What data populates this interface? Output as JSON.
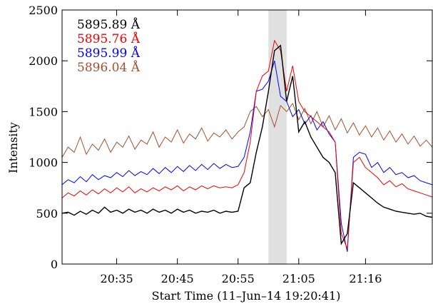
{
  "chart_data": {
    "type": "line",
    "title": "",
    "xlabel": "Start Time (11–Jun–14 19:20:41)",
    "ylabel": "Intensity",
    "x_unit": "minutes",
    "xlim": [
      "20:26",
      "21:27"
    ],
    "ylim": [
      0,
      2500
    ],
    "y_ticks": [
      0,
      500,
      1000,
      1500,
      2000,
      2500
    ],
    "x_ticks": [
      {
        "t": "20:35",
        "label": "20:35"
      },
      {
        "t": "20:45",
        "label": "20:45"
      },
      {
        "t": "20:55",
        "label": "20:55"
      },
      {
        "t": "21:05",
        "label": "21:05"
      },
      {
        "t": "21:16",
        "label": "21:16"
      }
    ],
    "shaded_interval": [
      "21:00",
      "21:03"
    ],
    "grid": false,
    "legend_position": "top-left",
    "series": [
      {
        "name": "5896.04 Å",
        "color": "#a0522d",
        "points": [
          [
            "20:26",
            1050
          ],
          [
            "20:27",
            1150
          ],
          [
            "20:28",
            1100
          ],
          [
            "20:29",
            1250
          ],
          [
            "20:30",
            1080
          ],
          [
            "20:31",
            1180
          ],
          [
            "20:32",
            1120
          ],
          [
            "20:33",
            1230
          ],
          [
            "20:34",
            1100
          ],
          [
            "20:35",
            1200
          ],
          [
            "20:36",
            1150
          ],
          [
            "20:37",
            1260
          ],
          [
            "20:38",
            1130
          ],
          [
            "20:39",
            1220
          ],
          [
            "20:40",
            1180
          ],
          [
            "20:41",
            1300
          ],
          [
            "20:42",
            1150
          ],
          [
            "20:43",
            1250
          ],
          [
            "20:44",
            1200
          ],
          [
            "20:45",
            1320
          ],
          [
            "20:46",
            1190
          ],
          [
            "20:47",
            1280
          ],
          [
            "20:48",
            1230
          ],
          [
            "20:49",
            1340
          ],
          [
            "20:50",
            1210
          ],
          [
            "20:51",
            1290
          ],
          [
            "20:52",
            1250
          ],
          [
            "20:53",
            1320
          ],
          [
            "20:54",
            1230
          ],
          [
            "20:55",
            1300
          ],
          [
            "20:56",
            1350
          ],
          [
            "20:57",
            1500
          ],
          [
            "20:58",
            1550
          ],
          [
            "20:59",
            1450
          ],
          [
            "21:00",
            1520
          ],
          [
            "21:01",
            1350
          ],
          [
            "21:02",
            1560
          ],
          [
            "21:03",
            1500
          ],
          [
            "21:04",
            1580
          ],
          [
            "21:05",
            1420
          ],
          [
            "21:06",
            1530
          ],
          [
            "21:07",
            1380
          ],
          [
            "21:08",
            1500
          ],
          [
            "21:09",
            1350
          ],
          [
            "21:10",
            1460
          ],
          [
            "21:11",
            1320
          ],
          [
            "21:12",
            1430
          ],
          [
            "21:13",
            1290
          ],
          [
            "21:14",
            1390
          ],
          [
            "21:15",
            1270
          ],
          [
            "21:16",
            1360
          ],
          [
            "21:17",
            1250
          ],
          [
            "21:18",
            1340
          ],
          [
            "21:19",
            1220
          ],
          [
            "21:20",
            1310
          ],
          [
            "21:21",
            1200
          ],
          [
            "21:22",
            1280
          ],
          [
            "21:23",
            1180
          ],
          [
            "21:24",
            1260
          ],
          [
            "21:25",
            1160
          ],
          [
            "21:26",
            1220
          ],
          [
            "21:27",
            1150
          ]
        ]
      },
      {
        "name": "5895.99 Å",
        "color": "#0000ff",
        "points": [
          [
            "20:26",
            780
          ],
          [
            "20:27",
            830
          ],
          [
            "20:28",
            800
          ],
          [
            "20:29",
            860
          ],
          [
            "20:30",
            810
          ],
          [
            "20:31",
            880
          ],
          [
            "20:32",
            830
          ],
          [
            "20:33",
            870
          ],
          [
            "20:34",
            850
          ],
          [
            "20:35",
            900
          ],
          [
            "20:36",
            860
          ],
          [
            "20:37",
            920
          ],
          [
            "20:38",
            870
          ],
          [
            "20:39",
            910
          ],
          [
            "20:40",
            880
          ],
          [
            "20:41",
            940
          ],
          [
            "20:42",
            890
          ],
          [
            "20:43",
            950
          ],
          [
            "20:44",
            900
          ],
          [
            "20:45",
            960
          ],
          [
            "20:46",
            910
          ],
          [
            "20:47",
            970
          ],
          [
            "20:48",
            920
          ],
          [
            "20:49",
            980
          ],
          [
            "20:50",
            930
          ],
          [
            "20:51",
            990
          ],
          [
            "20:52",
            940
          ],
          [
            "20:53",
            980
          ],
          [
            "20:54",
            950
          ],
          [
            "20:55",
            960
          ],
          [
            "20:56",
            1050
          ],
          [
            "20:57",
            1300
          ],
          [
            "20:58",
            1700
          ],
          [
            "20:59",
            1720
          ],
          [
            "21:00",
            1800
          ],
          [
            "21:01",
            2000
          ],
          [
            "21:02",
            1650
          ],
          [
            "21:03",
            1600
          ],
          [
            "21:04",
            1450
          ],
          [
            "21:05",
            1520
          ],
          [
            "21:06",
            1380
          ],
          [
            "21:07",
            1460
          ],
          [
            "21:08",
            1320
          ],
          [
            "21:09",
            1400
          ],
          [
            "21:10",
            1280
          ],
          [
            "21:11",
            1200
          ],
          [
            "21:12",
            400
          ],
          [
            "21:13",
            120
          ],
          [
            "21:14",
            1050
          ],
          [
            "21:15",
            1100
          ],
          [
            "21:16",
            1080
          ],
          [
            "21:17",
            950
          ],
          [
            "21:18",
            1000
          ],
          [
            "21:19",
            900
          ],
          [
            "21:20",
            950
          ],
          [
            "21:21",
            880
          ],
          [
            "21:22",
            900
          ],
          [
            "21:23",
            850
          ],
          [
            "21:24",
            870
          ],
          [
            "21:25",
            820
          ],
          [
            "21:26",
            800
          ],
          [
            "21:27",
            780
          ]
        ]
      },
      {
        "name": "5895.76 Å",
        "color": "#ee0000",
        "points": [
          [
            "20:26",
            650
          ],
          [
            "20:27",
            700
          ],
          [
            "20:28",
            670
          ],
          [
            "20:29",
            720
          ],
          [
            "20:30",
            680
          ],
          [
            "20:31",
            730
          ],
          [
            "20:32",
            690
          ],
          [
            "20:33",
            740
          ],
          [
            "20:34",
            700
          ],
          [
            "20:35",
            750
          ],
          [
            "20:36",
            710
          ],
          [
            "20:37",
            760
          ],
          [
            "20:38",
            700
          ],
          [
            "20:39",
            740
          ],
          [
            "20:40",
            710
          ],
          [
            "20:41",
            750
          ],
          [
            "20:42",
            720
          ],
          [
            "20:43",
            760
          ],
          [
            "20:44",
            730
          ],
          [
            "20:45",
            770
          ],
          [
            "20:46",
            720
          ],
          [
            "20:47",
            760
          ],
          [
            "20:48",
            730
          ],
          [
            "20:49",
            770
          ],
          [
            "20:50",
            740
          ],
          [
            "20:51",
            770
          ],
          [
            "20:52",
            750
          ],
          [
            "20:53",
            760
          ],
          [
            "20:54",
            750
          ],
          [
            "20:55",
            780
          ],
          [
            "20:56",
            900
          ],
          [
            "20:57",
            1200
          ],
          [
            "20:58",
            1700
          ],
          [
            "20:59",
            1850
          ],
          [
            "21:00",
            1900
          ],
          [
            "21:01",
            2200
          ],
          [
            "21:02",
            2100
          ],
          [
            "21:03",
            1700
          ],
          [
            "21:04",
            1950
          ],
          [
            "21:05",
            1600
          ],
          [
            "21:06",
            1500
          ],
          [
            "21:07",
            1450
          ],
          [
            "21:08",
            1400
          ],
          [
            "21:09",
            1350
          ],
          [
            "21:10",
            1300
          ],
          [
            "21:11",
            1200
          ],
          [
            "21:12",
            300
          ],
          [
            "21:13",
            150
          ],
          [
            "21:14",
            1000
          ],
          [
            "21:15",
            1050
          ],
          [
            "21:16",
            950
          ],
          [
            "21:17",
            900
          ],
          [
            "21:18",
            850
          ],
          [
            "21:19",
            780
          ],
          [
            "21:20",
            820
          ],
          [
            "21:21",
            760
          ],
          [
            "21:22",
            790
          ],
          [
            "21:23",
            740
          ],
          [
            "21:24",
            720
          ],
          [
            "21:25",
            700
          ],
          [
            "21:26",
            680
          ],
          [
            "21:27",
            660
          ]
        ]
      },
      {
        "name": "5895.89 Å",
        "color": "#000000",
        "points": [
          [
            "20:26",
            500
          ],
          [
            "20:27",
            510
          ],
          [
            "20:28",
            480
          ],
          [
            "20:29",
            520
          ],
          [
            "20:30",
            490
          ],
          [
            "20:31",
            530
          ],
          [
            "20:32",
            500
          ],
          [
            "20:33",
            560
          ],
          [
            "20:34",
            510
          ],
          [
            "20:35",
            530
          ],
          [
            "20:36",
            500
          ],
          [
            "20:37",
            540
          ],
          [
            "20:38",
            510
          ],
          [
            "20:39",
            530
          ],
          [
            "20:40",
            500
          ],
          [
            "20:41",
            540
          ],
          [
            "20:42",
            510
          ],
          [
            "20:43",
            530
          ],
          [
            "20:44",
            500
          ],
          [
            "20:45",
            540
          ],
          [
            "20:46",
            510
          ],
          [
            "20:47",
            530
          ],
          [
            "20:48",
            500
          ],
          [
            "20:49",
            520
          ],
          [
            "20:50",
            510
          ],
          [
            "20:51",
            530
          ],
          [
            "20:52",
            500
          ],
          [
            "20:53",
            520
          ],
          [
            "20:54",
            510
          ],
          [
            "20:55",
            520
          ],
          [
            "20:56",
            750
          ],
          [
            "20:57",
            800
          ],
          [
            "20:58",
            1100
          ],
          [
            "20:59",
            1350
          ],
          [
            "21:00",
            1700
          ],
          [
            "21:01",
            2100
          ],
          [
            "21:02",
            2150
          ],
          [
            "21:03",
            1600
          ],
          [
            "21:04",
            1850
          ],
          [
            "21:05",
            1300
          ],
          [
            "21:06",
            1400
          ],
          [
            "21:07",
            1250
          ],
          [
            "21:08",
            1150
          ],
          [
            "21:09",
            1050
          ],
          [
            "21:10",
            1000
          ],
          [
            "21:11",
            900
          ],
          [
            "21:12",
            200
          ],
          [
            "21:13",
            300
          ],
          [
            "21:14",
            800
          ],
          [
            "21:15",
            750
          ],
          [
            "21:16",
            700
          ],
          [
            "21:17",
            650
          ],
          [
            "21:18",
            600
          ],
          [
            "21:19",
            560
          ],
          [
            "21:20",
            540
          ],
          [
            "21:21",
            520
          ],
          [
            "21:22",
            510
          ],
          [
            "21:23",
            500
          ],
          [
            "21:24",
            490
          ],
          [
            "21:25",
            500
          ],
          [
            "21:26",
            470
          ],
          [
            "21:27",
            460
          ]
        ]
      }
    ],
    "legend_order": [
      "5895.89 Å",
      "5895.76 Å",
      "5895.99 Å",
      "5896.04 Å"
    ]
  }
}
